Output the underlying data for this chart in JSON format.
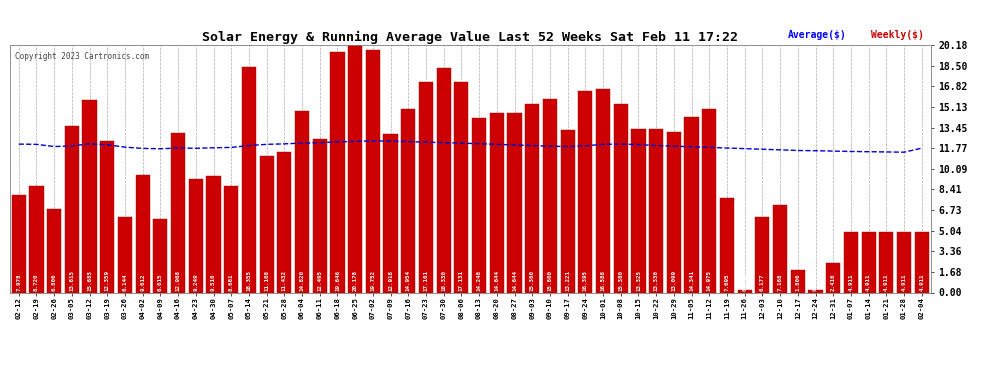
{
  "title": "Solar Energy & Running Average Value Last 52 Weeks Sat Feb 11 17:22",
  "copyright": "Copyright 2023 Cartronics.com",
  "bar_color": "#cc0000",
  "avg_line_color": "#0000cc",
  "bar_edge_color": "#990000",
  "background_color": "#ffffff",
  "grid_color": "#aaaaaa",
  "categories": [
    "02-12",
    "02-19",
    "02-26",
    "03-05",
    "03-12",
    "03-19",
    "03-26",
    "04-02",
    "04-09",
    "04-16",
    "04-23",
    "04-30",
    "05-07",
    "05-14",
    "05-21",
    "05-28",
    "06-04",
    "06-11",
    "06-18",
    "06-25",
    "07-02",
    "07-09",
    "07-16",
    "07-23",
    "07-30",
    "08-06",
    "08-13",
    "08-20",
    "08-27",
    "09-03",
    "09-10",
    "09-17",
    "09-24",
    "10-01",
    "10-08",
    "10-15",
    "10-22",
    "10-29",
    "11-05",
    "11-12",
    "11-19",
    "11-26",
    "12-03",
    "12-10",
    "12-17",
    "12-24",
    "12-31",
    "01-07",
    "01-14",
    "01-21",
    "01-28",
    "02-04"
  ],
  "weekly_values": [
    7.978,
    8.72,
    6.806,
    13.615,
    15.685,
    12.359,
    6.144,
    9.612,
    6.015,
    12.968,
    9.249,
    9.51,
    8.661,
    18.355,
    11.108,
    11.432,
    14.82,
    12.495,
    19.646,
    20.178,
    19.752,
    12.918,
    14.954,
    17.161,
    18.33,
    17.131,
    14.248,
    14.644,
    14.644,
    15.36,
    15.8,
    13.221,
    16.395,
    16.588,
    15.38,
    13.325,
    13.33,
    13.099,
    14.341,
    14.975,
    7.695,
    0.243,
    6.177,
    7.168,
    1.806,
    0.193,
    2.416,
    4.911,
    4.911,
    4.911,
    4.911,
    4.911
  ],
  "avg_values": [
    12.1,
    12.08,
    11.9,
    11.95,
    12.12,
    12.05,
    11.85,
    11.75,
    11.72,
    11.78,
    11.76,
    11.8,
    11.83,
    11.98,
    12.08,
    12.12,
    12.18,
    12.22,
    12.28,
    12.32,
    12.36,
    12.34,
    12.3,
    12.26,
    12.22,
    12.18,
    12.13,
    12.08,
    12.03,
    11.98,
    11.93,
    11.9,
    11.96,
    12.08,
    12.1,
    12.06,
    11.98,
    11.93,
    11.88,
    11.83,
    11.78,
    11.73,
    11.68,
    11.63,
    11.58,
    11.56,
    11.53,
    11.5,
    11.48,
    11.46,
    11.44,
    11.77
  ],
  "yticks_right": [
    0.0,
    1.68,
    3.36,
    5.04,
    6.73,
    8.41,
    10.09,
    11.77,
    13.45,
    15.13,
    16.82,
    18.5,
    20.18
  ],
  "ylim": [
    0,
    20.18
  ],
  "legend_avg_label": "Average($)",
  "legend_weekly_label": "Weekly($)",
  "legend_avg_color": "#0000ff",
  "legend_weekly_color": "#cc0000"
}
